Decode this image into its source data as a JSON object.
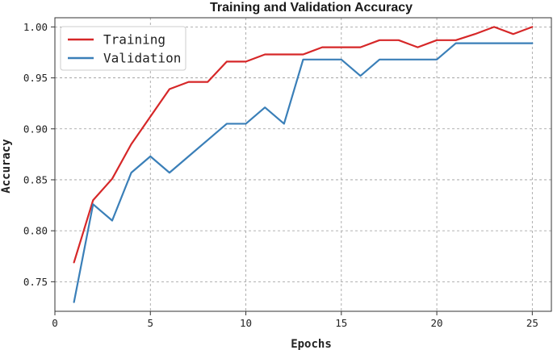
{
  "chart_data": {
    "type": "line",
    "title": "Training and Validation Accuracy",
    "xlabel": "Epochs",
    "ylabel": "Accuracy",
    "xlim": [
      0,
      26
    ],
    "ylim": [
      0.721,
      1.009
    ],
    "xticks": [
      0,
      5,
      10,
      15,
      20,
      25
    ],
    "xtick_labels": [
      "0",
      "5",
      "10",
      "15",
      "20",
      "25"
    ],
    "yticks": [
      0.75,
      0.8,
      0.85,
      0.9,
      0.95,
      1.0
    ],
    "ytick_labels": [
      "0.75",
      "0.80",
      "0.85",
      "0.90",
      "0.95",
      "1.00"
    ],
    "grid": true,
    "legend_position": "top-left",
    "x": [
      1,
      2,
      3,
      4,
      5,
      6,
      7,
      8,
      9,
      10,
      11,
      12,
      13,
      14,
      15,
      16,
      17,
      18,
      19,
      20,
      21,
      22,
      23,
      24,
      25
    ],
    "series": [
      {
        "name": "Training",
        "color": "#d62728",
        "values": [
          0.769,
          0.83,
          0.851,
          0.885,
          0.912,
          0.939,
          0.946,
          0.946,
          0.966,
          0.966,
          0.973,
          0.973,
          0.973,
          0.98,
          0.98,
          0.98,
          0.987,
          0.987,
          0.98,
          0.987,
          0.987,
          0.993,
          1.0,
          0.993,
          1.0
        ]
      },
      {
        "name": "Validation",
        "color": "#3a7fb8",
        "values": [
          0.73,
          0.826,
          0.81,
          0.857,
          0.873,
          0.857,
          0.873,
          0.889,
          0.905,
          0.905,
          0.921,
          0.905,
          0.968,
          0.968,
          0.968,
          0.952,
          0.968,
          0.968,
          0.968,
          0.968,
          0.984,
          0.984,
          0.984,
          0.984,
          0.984
        ]
      }
    ]
  }
}
